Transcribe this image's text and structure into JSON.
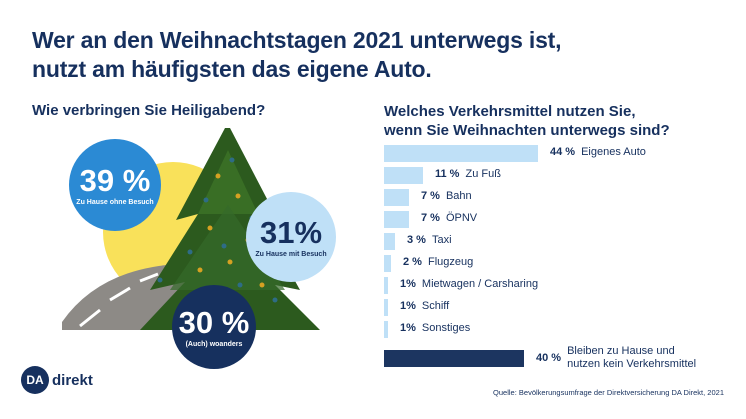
{
  "header": {
    "title_line1": "Wer an den Weihnachtstagen 2021 unterwegs ist,",
    "title_line2": "nutzt am häufigsten das eigene Auto."
  },
  "left": {
    "question": "Wie verbringen Sie Heiligabend?",
    "bubbles": [
      {
        "value": "39 %",
        "label": "Zu Hause ohne Besuch",
        "color": "#2b8ad4"
      },
      {
        "value": "31%",
        "label": "Zu Hause mit Besuch",
        "color": "#bfe0f7"
      },
      {
        "value": "30 %",
        "label": "(Auch) woanders",
        "color": "#16305e"
      }
    ]
  },
  "right": {
    "question_line1": "Welches Verkehrsmittel nutzen Sie,",
    "question_line2": "wenn Sie Weihnachten unterwegs sind?"
  },
  "chart_data": [
    {
      "type": "pie",
      "title": "Wie verbringen Sie Heiligabend?",
      "categories": [
        "Zu Hause ohne Besuch",
        "Zu Hause mit Besuch",
        "(Auch) woanders"
      ],
      "values": [
        39,
        31,
        30
      ],
      "unit": "%"
    },
    {
      "type": "bar",
      "orientation": "horizontal",
      "title": "Welches Verkehrsmittel nutzen Sie, wenn Sie Weihnachten unterwegs sind?",
      "categories": [
        "Eigenes Auto",
        "Zu Fuß",
        "Bahn",
        "ÖPNV",
        "Taxi",
        "Flugzeug",
        "Mietwagen / Carsharing",
        "Schiff",
        "Sonstiges",
        "Bleiben zu Hause und nutzen kein Verkehrsmittel"
      ],
      "values": [
        44,
        11,
        7,
        7,
        3,
        2,
        1,
        1,
        1,
        40
      ],
      "value_labels": [
        "44 %",
        "11 %",
        "7 %",
        "7 %",
        "3 %",
        "2 %",
        "1%",
        "1%",
        "1%",
        "40 %"
      ],
      "label_lines": [
        [
          "Eigenes Auto"
        ],
        [
          "Zu Fuß"
        ],
        [
          "Bahn"
        ],
        [
          "ÖPNV"
        ],
        [
          "Taxi"
        ],
        [
          "Flugzeug"
        ],
        [
          "Mietwagen / Carsharing"
        ],
        [
          "Schiff"
        ],
        [
          "Sonstiges"
        ],
        [
          "Bleiben zu Hause und",
          "nutzen kein Verkehrsmittel"
        ]
      ],
      "colors": {
        "default": "#bfe0f7",
        "highlight": "#1c3560"
      },
      "highlight_index": 9,
      "xlim": [
        0,
        44
      ],
      "unit": "%"
    }
  ],
  "footer": {
    "logo_mark": "DA",
    "logo_word": "direkt",
    "source": "Quelle: Bevölkerungsumfrage der Direktversicherung DA Direkt, 2021"
  }
}
